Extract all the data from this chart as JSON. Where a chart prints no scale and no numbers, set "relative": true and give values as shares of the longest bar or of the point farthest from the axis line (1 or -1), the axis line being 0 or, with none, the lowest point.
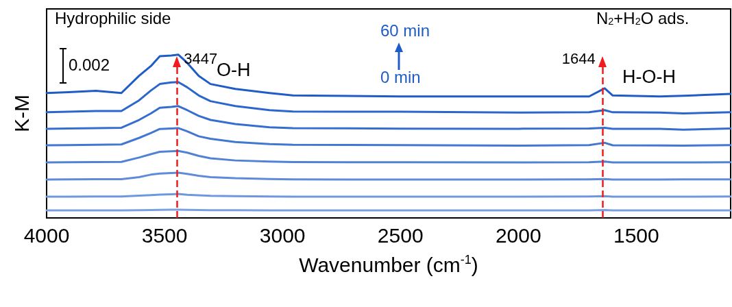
{
  "chart_data": {
    "type": "line",
    "relative": true,
    "xlabel": "Wavenumber (cm$^{-1}$)",
    "ylabel": "K-M",
    "xlim": [
      4000,
      1100
    ],
    "xticks": [
      4000,
      3500,
      3000,
      2500,
      2000,
      1500
    ],
    "grid": false,
    "marker": "none",
    "line_style": "solid",
    "x": [
      4000,
      3907,
      3791,
      3683,
      3608,
      3558,
      3520,
      3471,
      3442,
      3404,
      3355,
      3305,
      3200,
      3055,
      2956,
      2500,
      2000,
      1700,
      1634,
      1600,
      1400,
      1300,
      1100
    ],
    "series": [
      {
        "color": "#7aa0e2",
        "values": [
          0.046,
          0.046,
          0.046,
          0.046,
          0.047,
          0.048,
          0.049,
          0.05,
          0.05,
          0.049,
          0.048,
          0.047,
          0.047,
          0.046,
          0.046,
          0.046,
          0.046,
          0.046,
          0.048,
          0.046,
          0.046,
          0.046,
          0.046
        ]
      },
      {
        "color": "#6e97df",
        "values": [
          0.13,
          0.13,
          0.131,
          0.131,
          0.136,
          0.14,
          0.143,
          0.145,
          0.147,
          0.142,
          0.138,
          0.135,
          0.133,
          0.131,
          0.13,
          0.13,
          0.13,
          0.131,
          0.133,
          0.13,
          0.13,
          0.13,
          0.131
        ]
      },
      {
        "color": "#5f8bda",
        "values": [
          0.235,
          0.236,
          0.237,
          0.237,
          0.25,
          0.265,
          0.272,
          0.275,
          0.277,
          0.27,
          0.258,
          0.25,
          0.243,
          0.238,
          0.236,
          0.235,
          0.235,
          0.236,
          0.238,
          0.235,
          0.235,
          0.236,
          0.236
        ]
      },
      {
        "color": "#5282d6",
        "values": [
          0.34,
          0.341,
          0.342,
          0.343,
          0.37,
          0.39,
          0.405,
          0.408,
          0.41,
          0.4,
          0.38,
          0.365,
          0.352,
          0.345,
          0.342,
          0.341,
          0.34,
          0.341,
          0.345,
          0.34,
          0.34,
          0.34,
          0.341
        ]
      },
      {
        "color": "#4277d2",
        "values": [
          0.445,
          0.446,
          0.448,
          0.45,
          0.49,
          0.52,
          0.545,
          0.548,
          0.55,
          0.53,
          0.5,
          0.485,
          0.465,
          0.452,
          0.448,
          0.446,
          0.443,
          0.446,
          0.46,
          0.445,
          0.444,
          0.443,
          0.446
        ]
      },
      {
        "color": "#356ecf",
        "values": [
          0.546,
          0.548,
          0.55,
          0.552,
          0.6,
          0.64,
          0.675,
          0.68,
          0.685,
          0.66,
          0.625,
          0.6,
          0.575,
          0.555,
          0.55,
          0.547,
          0.546,
          0.548,
          0.552,
          0.546,
          0.546,
          0.54,
          0.548
        ]
      },
      {
        "color": "#2b66cc",
        "values": [
          0.647,
          0.65,
          0.655,
          0.655,
          0.72,
          0.78,
          0.82,
          0.83,
          0.832,
          0.8,
          0.75,
          0.715,
          0.685,
          0.66,
          0.652,
          0.65,
          0.645,
          0.647,
          0.66,
          0.647,
          0.645,
          0.64,
          0.647
        ]
      },
      {
        "color": "#1f5cc6",
        "values": [
          0.765,
          0.77,
          0.778,
          0.765,
          0.87,
          0.93,
          0.99,
          0.995,
          1.0,
          0.95,
          0.87,
          0.82,
          0.79,
          0.765,
          0.75,
          0.744,
          0.744,
          0.744,
          0.794,
          0.75,
          0.744,
          0.748,
          0.76
        ]
      }
    ],
    "ref_lines": [
      {
        "axis": "x",
        "value": 3447,
        "label": "3447",
        "color": "#ee1c1c",
        "line_style": "dashed"
      },
      {
        "axis": "x",
        "value": 1644,
        "label": "1644",
        "color": "#ee1c1c",
        "line_style": "dashed"
      }
    ],
    "annotations": [
      "Hydrophilic side",
      "0.002",
      "60 min",
      "0 min",
      "N$_{2}$+H$_{2}$O ads.",
      "O-H",
      "H-O-H"
    ]
  }
}
